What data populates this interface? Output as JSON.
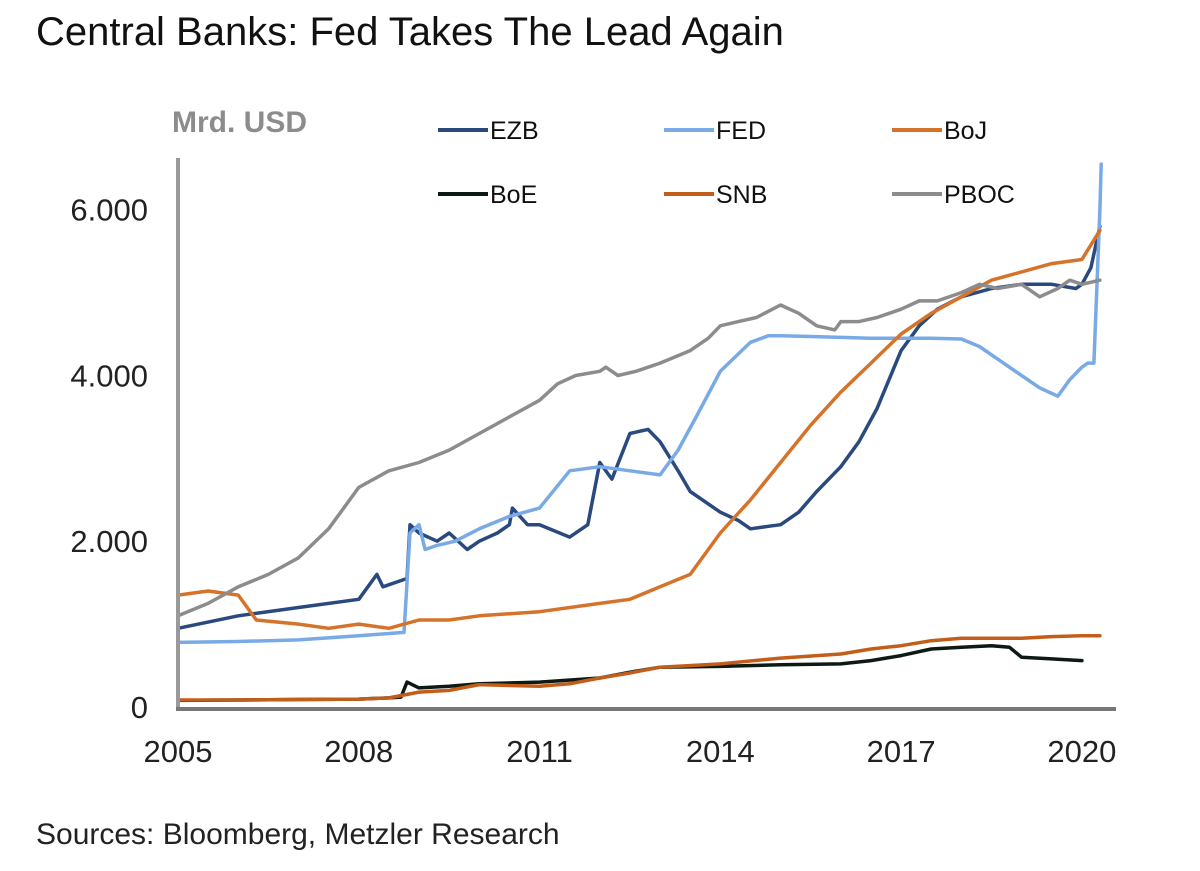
{
  "title": "Central Banks: Fed Takes The Lead Again",
  "source": "Sources: Bloomberg, Metzler Research",
  "chart_data": {
    "type": "line",
    "title": "Central Banks: Fed Takes The Lead Again",
    "ylabel": "Mrd. USD",
    "xlabel": "",
    "xlim": [
      2005,
      2020.5
    ],
    "ylim": [
      0,
      6600
    ],
    "x_ticks": [
      2005,
      2008,
      2011,
      2014,
      2017,
      2020
    ],
    "x_tick_labels": [
      "2005",
      "2008",
      "2011",
      "2014",
      "2017",
      "2020"
    ],
    "y_ticks": [
      0,
      2000,
      4000,
      6000
    ],
    "y_tick_labels": [
      "0",
      "2.000",
      "4.000",
      "6.000"
    ],
    "grid": false,
    "legend_position": "top",
    "series": [
      {
        "name": "EZB",
        "color": "#2a4a7f",
        "x": [
          2005,
          2006,
          2007,
          2008,
          2008.3,
          2008.4,
          2008.8,
          2008.85,
          2009.0,
          2009.3,
          2009.5,
          2009.8,
          2010.0,
          2010.3,
          2010.5,
          2010.55,
          2010.8,
          2011.0,
          2011.5,
          2011.8,
          2012.0,
          2012.2,
          2012.5,
          2012.8,
          2013.0,
          2013.3,
          2013.5,
          2013.8,
          2014.0,
          2014.3,
          2014.5,
          2014.8,
          2015.0,
          2015.3,
          2015.6,
          2016.0,
          2016.3,
          2016.6,
          2017.0,
          2017.3,
          2017.6,
          2018.0,
          2018.5,
          2019.0,
          2019.5,
          2019.9,
          2020.0,
          2020.15,
          2020.3
        ],
        "values": [
          950,
          1100,
          1200,
          1300,
          1600,
          1450,
          1550,
          2200,
          2100,
          2000,
          2100,
          1900,
          2000,
          2100,
          2200,
          2400,
          2200,
          2200,
          2050,
          2200,
          2950,
          2750,
          3300,
          3350,
          3200,
          2850,
          2600,
          2450,
          2350,
          2250,
          2150,
          2180,
          2200,
          2350,
          2600,
          2900,
          3200,
          3600,
          4300,
          4600,
          4800,
          4950,
          5050,
          5100,
          5100,
          5050,
          5100,
          5300,
          5800
        ]
      },
      {
        "name": "FED",
        "color": "#79aae6",
        "x": [
          2005,
          2006,
          2007,
          2008,
          2008.75,
          2008.85,
          2009.0,
          2009.1,
          2009.3,
          2009.6,
          2010.0,
          2010.5,
          2011.0,
          2011.5,
          2012.0,
          2012.5,
          2013.0,
          2013.3,
          2013.6,
          2014.0,
          2014.5,
          2014.8,
          2015.0,
          2015.5,
          2016.0,
          2016.5,
          2017.0,
          2017.5,
          2018.0,
          2018.3,
          2018.6,
          2019.0,
          2019.3,
          2019.6,
          2019.8,
          2020.0,
          2020.1,
          2020.2,
          2020.3,
          2020.32
        ],
        "values": [
          780,
          790,
          810,
          860,
          900,
          2100,
          2200,
          1900,
          1950,
          2000,
          2150,
          2300,
          2400,
          2850,
          2900,
          2850,
          2800,
          3100,
          3500,
          4050,
          4400,
          4480,
          4480,
          4470,
          4460,
          4450,
          4450,
          4450,
          4440,
          4350,
          4200,
          4000,
          3850,
          3750,
          3950,
          4100,
          4150,
          4150,
          6000,
          6550
        ]
      },
      {
        "name": "BoJ",
        "color": "#d6732b",
        "x": [
          2005,
          2005.5,
          2006.0,
          2006.3,
          2007.0,
          2007.5,
          2008.0,
          2008.5,
          2009.0,
          2009.5,
          2010.0,
          2011.0,
          2012.0,
          2012.5,
          2013.0,
          2013.5,
          2014.0,
          2014.5,
          2015.0,
          2015.5,
          2016.0,
          2016.5,
          2017.0,
          2017.5,
          2018.0,
          2018.5,
          2019.0,
          2019.5,
          2020.0,
          2020.3
        ],
        "values": [
          1350,
          1400,
          1350,
          1050,
          1000,
          950,
          1000,
          950,
          1050,
          1050,
          1100,
          1150,
          1250,
          1300,
          1450,
          1600,
          2100,
          2500,
          2950,
          3400,
          3800,
          4150,
          4500,
          4750,
          4950,
          5150,
          5250,
          5350,
          5400,
          5750
        ]
      },
      {
        "name": "BoE",
        "color": "#0d1a14",
        "x": [
          2005,
          2006,
          2007,
          2008,
          2008.5,
          2008.7,
          2008.8,
          2009.0,
          2009.5,
          2010.0,
          2011.0,
          2012.0,
          2012.5,
          2013.0,
          2014.0,
          2015.0,
          2016.0,
          2016.5,
          2017.0,
          2017.5,
          2018.0,
          2018.5,
          2018.8,
          2019.0,
          2019.5,
          2020.0
        ],
        "values": [
          80,
          85,
          90,
          95,
          110,
          120,
          300,
          230,
          250,
          280,
          300,
          350,
          420,
          480,
          490,
          510,
          520,
          560,
          620,
          700,
          720,
          740,
          720,
          600,
          580,
          560
        ]
      },
      {
        "name": "SNB",
        "color": "#c25e1a",
        "x": [
          2005,
          2006,
          2007,
          2008,
          2008.5,
          2009.0,
          2009.5,
          2010.0,
          2010.5,
          2011.0,
          2011.5,
          2012.0,
          2012.5,
          2013.0,
          2014.0,
          2015.0,
          2016.0,
          2016.5,
          2017.0,
          2017.5,
          2018.0,
          2019.0,
          2019.5,
          2020.0,
          2020.3
        ],
        "values": [
          85,
          85,
          90,
          95,
          110,
          180,
          200,
          270,
          260,
          250,
          280,
          350,
          410,
          480,
          520,
          590,
          640,
          700,
          740,
          800,
          830,
          830,
          850,
          860,
          860
        ]
      },
      {
        "name": "PBOC",
        "color": "#8c8c8c",
        "x": [
          2005,
          2005.5,
          2006.0,
          2006.5,
          2007.0,
          2007.5,
          2008.0,
          2008.5,
          2009.0,
          2009.5,
          2010.0,
          2010.5,
          2011.0,
          2011.3,
          2011.6,
          2012.0,
          2012.1,
          2012.3,
          2012.6,
          2013.0,
          2013.5,
          2013.8,
          2014.0,
          2014.3,
          2014.6,
          2015.0,
          2015.3,
          2015.6,
          2015.9,
          2016.0,
          2016.3,
          2016.6,
          2017.0,
          2017.3,
          2017.6,
          2018.0,
          2018.3,
          2018.6,
          2019.0,
          2019.3,
          2019.6,
          2019.8,
          2020.0,
          2020.3
        ],
        "values": [
          1100,
          1250,
          1450,
          1600,
          1800,
          2150,
          2650,
          2850,
          2950,
          3100,
          3300,
          3500,
          3700,
          3900,
          4000,
          4050,
          4100,
          4000,
          4050,
          4150,
          4300,
          4450,
          4600,
          4650,
          4700,
          4850,
          4750,
          4600,
          4550,
          4650,
          4650,
          4700,
          4800,
          4900,
          4900,
          5000,
          5100,
          5050,
          5100,
          4950,
          5050,
          5150,
          5100,
          5150
        ]
      }
    ]
  }
}
